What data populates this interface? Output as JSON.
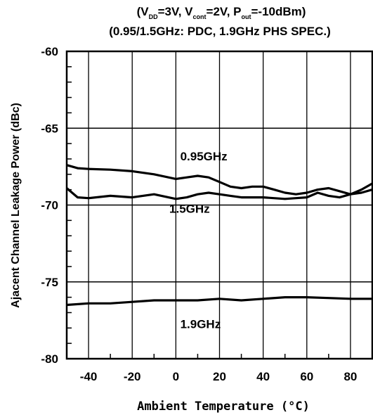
{
  "chart_data": {
    "type": "line",
    "title_line1_parts": {
      "open": "(V",
      "vdd_sub": "DD",
      "seg1": "=3V, V",
      "vcont_sub": "cont",
      "seg2": "=2V, P",
      "pout_sub": "out",
      "seg3": "=-10dBm)"
    },
    "title_line2": "(0.95/1.5GHz: PDC, 1.9GHz PHS SPEC.)",
    "xlabel": "Ambient Temperature (°C)",
    "ylabel": "Ajacent Channel Leakage Power (dBc)",
    "xlim": [
      -50,
      90
    ],
    "ylim": [
      -80,
      -60
    ],
    "x_ticks": [
      -40,
      -20,
      0,
      20,
      40,
      60,
      80
    ],
    "y_ticks": [
      -80,
      -75,
      -70,
      -65,
      -60
    ],
    "grid": true,
    "series": [
      {
        "name": "0.95GHz",
        "points": [
          [
            -50,
            -67.4
          ],
          [
            -45,
            -67.6
          ],
          [
            -40,
            -67.65
          ],
          [
            -30,
            -67.7
          ],
          [
            -20,
            -67.8
          ],
          [
            -10,
            -68.0
          ],
          [
            0,
            -68.3
          ],
          [
            5,
            -68.2
          ],
          [
            10,
            -68.1
          ],
          [
            15,
            -68.2
          ],
          [
            20,
            -68.5
          ],
          [
            25,
            -68.8
          ],
          [
            30,
            -68.9
          ],
          [
            35,
            -68.8
          ],
          [
            40,
            -68.8
          ],
          [
            45,
            -69.0
          ],
          [
            50,
            -69.2
          ],
          [
            55,
            -69.3
          ],
          [
            60,
            -69.2
          ],
          [
            65,
            -69.0
          ],
          [
            70,
            -68.9
          ],
          [
            75,
            -69.1
          ],
          [
            80,
            -69.3
          ],
          [
            85,
            -69.0
          ],
          [
            90,
            -68.6
          ]
        ]
      },
      {
        "name": "1.5GHz",
        "points": [
          [
            -50,
            -68.9
          ],
          [
            -45,
            -69.5
          ],
          [
            -40,
            -69.55
          ],
          [
            -30,
            -69.4
          ],
          [
            -20,
            -69.5
          ],
          [
            -10,
            -69.3
          ],
          [
            0,
            -69.6
          ],
          [
            5,
            -69.5
          ],
          [
            10,
            -69.3
          ],
          [
            15,
            -69.2
          ],
          [
            20,
            -69.3
          ],
          [
            25,
            -69.4
          ],
          [
            30,
            -69.5
          ],
          [
            40,
            -69.5
          ],
          [
            50,
            -69.6
          ],
          [
            55,
            -69.55
          ],
          [
            60,
            -69.5
          ],
          [
            65,
            -69.2
          ],
          [
            70,
            -69.4
          ],
          [
            75,
            -69.5
          ],
          [
            80,
            -69.3
          ],
          [
            85,
            -69.2
          ],
          [
            90,
            -69.0
          ]
        ]
      },
      {
        "name": "1.9GHz",
        "points": [
          [
            -50,
            -76.5
          ],
          [
            -40,
            -76.4
          ],
          [
            -30,
            -76.4
          ],
          [
            -20,
            -76.3
          ],
          [
            -10,
            -76.2
          ],
          [
            0,
            -76.2
          ],
          [
            10,
            -76.2
          ],
          [
            20,
            -76.1
          ],
          [
            30,
            -76.2
          ],
          [
            40,
            -76.1
          ],
          [
            50,
            -76.0
          ],
          [
            60,
            -76.0
          ],
          [
            70,
            -76.05
          ],
          [
            80,
            -76.1
          ],
          [
            90,
            -76.1
          ]
        ]
      }
    ]
  }
}
